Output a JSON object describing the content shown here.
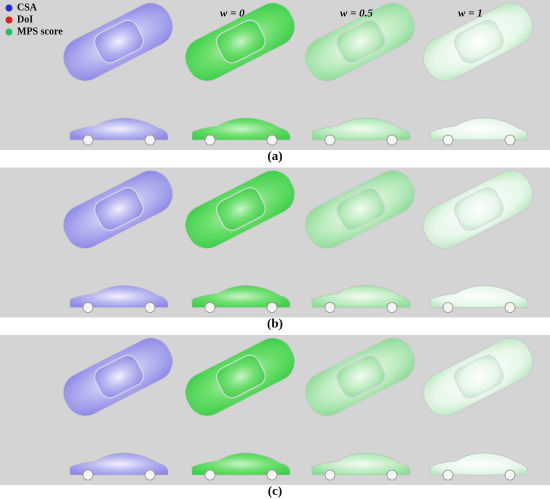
{
  "legend": [
    {
      "label": "CSA",
      "color": "#2a2ad6"
    },
    {
      "label": "DoI",
      "color": "#e02020"
    },
    {
      "label": "MPS score",
      "color": "#20c070"
    }
  ],
  "columns": [
    "w = 0",
    "w = 0.5",
    "w = 1"
  ],
  "panels": [
    "(a)",
    "(b)",
    "(c)"
  ]
}
